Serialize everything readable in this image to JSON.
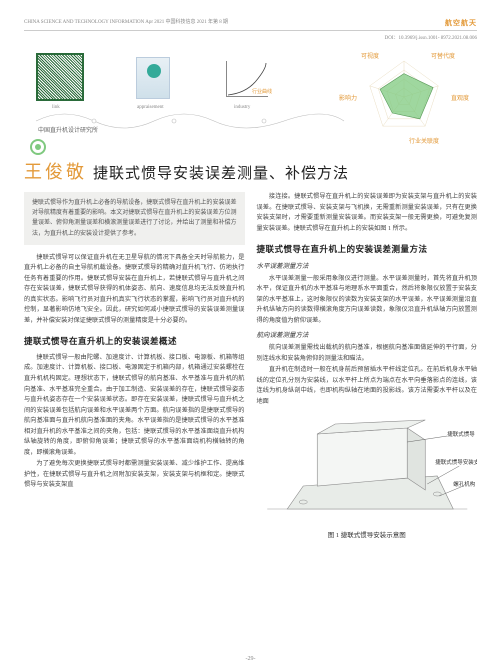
{
  "header": {
    "left": "CHINA SCIENCE AND TECHNOLOGY INFORMATION    Apr 2021    中国科技信息 2021 年第 8 期",
    "right": "航空航天"
  },
  "doi": "DOI：10.3969/j.issn.1001- 8972.2021.08.006",
  "top": {
    "qr_label": "link",
    "cert_label": "appraisement",
    "curve_label": "industry",
    "curve_caption": "行业曲线",
    "institute": "中国直升机设计研究所"
  },
  "radar": {
    "axes": [
      "可视度",
      "可替代度",
      "直观度",
      "行业关联度",
      "影响力"
    ],
    "values": [
      0.65,
      0.85,
      0.75,
      0.55,
      0.7
    ],
    "fill": "#7fc97f",
    "stroke": "#e39a3a"
  },
  "author": "王俊敬",
  "title": "捷联式惯导安装误差测量、补偿方法",
  "abstract": "捷联式惯导作为直升机上必备的导航设备，捷联式惯导在直升机上的安装误差对导航精度有着重要的影响。本文对捷联式惯导在直升机上的安装误差方位测量误差、俯仰角测量误差和横滚测量误差进行了讨论，并给出了测量和补偿方法，为直升机上的安装设计提供了参考。",
  "col1": {
    "p1": "捷联式惯导可以保证直升机在无卫星导航的情况下具备全天时导航能力，是直升机上必备的自主导航机载设备。捷联式惯导的精确对直升机飞行、仿地执行任务有着重要的作用。捷联式惯导安装在直升机上，若捷联式惯导与直升机之间存在安装误差，捷联式惯导获得的机体姿态、航向、速度信息均无法反映直升机的真实状态。影响飞行员对直升机真实飞行状态的掌握，影响飞行员对直升机的控制，显著影响仿地飞安全。因此，研究如何减小捷联式惯导的安装误差测量误差，并补偿安装对保证捷联式惯导的测量精度是十分必要的。",
    "h1": "捷联式惯导在直升机上的安装误差概述",
    "p2": "捷联式惯导一般由陀螺、加速度计、计算机板、接口板、电源板、机箱等组成。加速度计、计算机板、接口板、电源固定于机箱内部，机箱通过安装螺栓在直升机机构固定。理想状态下，捷联式惯导的航向基准、水平基准与直升机的航向基准、水平基准完全重合。由于加工制造、安装误差的存在，捷联式惯导姿态与直升机姿态存在一个安装误差状态。即存在安装误差，捷联式惯导与直升机之间的安装误差包括航向误差和水平误差两个方面。航向误差指的是捷联式惯导的航向基准面与直升机航向基准面的夹角。水平误差指的是捷联式惯导的水平基准相对直升机的水平基准之间的夹角，包括：捷联式惯导的水平基准面绕直升机构纵轴旋转的角度，即俯仰角误差；捷联式惯导的水平基准面绕机构横轴转的角度，即横滚角误差。",
    "p3": "为了避免每次更换捷联式惯导时都需测量安装误差、减少维护工作、提高维护性，在捷联式惯导与直升机之间附加安装支架，安装支架与机框和定。捷联式惯导与安装支架直"
  },
  "col2": {
    "p1": "接连接。捷联式惯导在直升机上的安装误差即为安装支架与直升机上的安装误差。在捷联式惯导、安装支架与飞机换，无需重新测量安装误差，只有在更换安装支架时，才需要重新测量安装误差。而安装支架一般无需更换，可避免复测量安装误差。捷联式惯导在直升机上的安装如图 1 所示。",
    "h1": "捷联式惯导在直升机上的安装误差测量方法",
    "sub1": "水平误差测量方法",
    "p2": "水平误差测量一般采用象限仪进行测量。水平误差测量时，首先将直升机顶水平，保证直升机的水平基准与地理系水平面重合，然后将象限仪放置于安装支架的水平基准上，这时象限仪的读数为安装支架的水平误差，水平误差测量沿直升机纵轴方向的读数得横滚角度方向误差读数，象限仪沿直升机纵轴方向放置测得的角度值为俯仰误差。",
    "sub2": "航向误差测量方法",
    "p3": "航向误差测量需找出载机的航向基准，根据航向基准面做延伸的平行面，分别连线水和安装角俯仰的测量法和瞄法。",
    "p4": "直升机在制造时一般在机身前后预留插水平杆线定位孔。在前后机身水平轴线的定位孔分别为安装线，以水平杆上所点为端点在水平向垂落影点的连线，该连线为机身纵剖中线，也即机构纵轴在地面的投影线。该方法需要水平杆以及在地面",
    "fig_caption": "图 1  捷联式惯导安装示意图",
    "fig_labels": {
      "a": "捷联式惯导",
      "b": "捷联式惯导安装支架",
      "c": "螺孔机构"
    }
  },
  "page_number": "-29-"
}
